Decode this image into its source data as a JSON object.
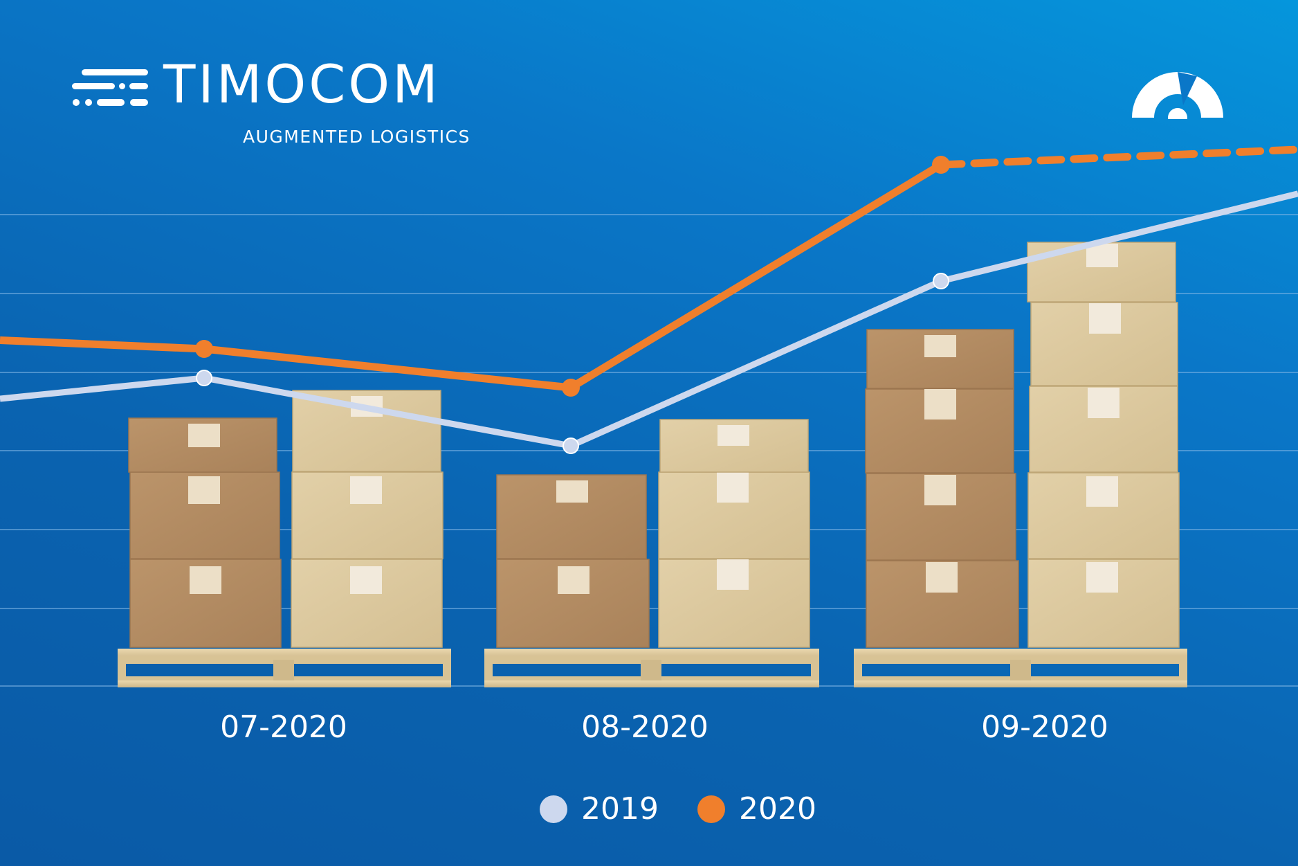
{
  "brand": {
    "name": "TIMOCOM",
    "tagline": "AUGMENTED LOGISTICS",
    "logo_icon": "speed-lines-icon",
    "gauge_icon": "speedometer-icon"
  },
  "colors": {
    "background": "#0a6bb8",
    "series_2019": "#cdd8ee",
    "series_2020": "#f07f2c",
    "box_dark": "#b38c5e",
    "box_light": "#dcc89e",
    "pallet": "#e2cfa3"
  },
  "chart_data": {
    "type": "line",
    "categories": [
      "07-2020",
      "08-2020",
      "09-2020"
    ],
    "series": [
      {
        "name": "2019",
        "values": [
          3.3,
          2.6,
          4.3
        ]
      },
      {
        "name": "2020",
        "values": [
          3.6,
          3.2,
          5.5
        ]
      }
    ],
    "grid": true,
    "legend": "bottom-center"
  },
  "legend": {
    "items": [
      {
        "label": "2019"
      },
      {
        "label": "2020"
      }
    ]
  }
}
